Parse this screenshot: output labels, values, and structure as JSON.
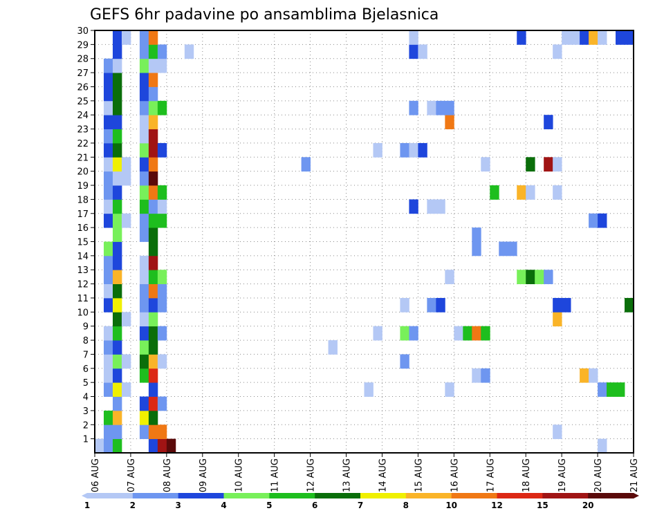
{
  "chart_data": {
    "type": "heatmap",
    "title": "GEFS 6hr padavine po ansamblima Bjelasnica",
    "xlabel": "",
    "ylabel": "",
    "x_ticks": [
      "06 AUG",
      "07 AUG",
      "08 AUG",
      "09 AUG",
      "10 AUG",
      "11 AUG",
      "12 AUG",
      "13 AUG",
      "14 AUG",
      "15 AUG",
      "16 AUG",
      "17 AUG",
      "18 AUG",
      "19 AUG",
      "20 AUG",
      "21 AUG"
    ],
    "y_ticks": [
      "1",
      "2",
      "3",
      "4",
      "5",
      "6",
      "7",
      "8",
      "9",
      "10",
      "11",
      "12",
      "13",
      "14",
      "15",
      "16",
      "17",
      "18",
      "19",
      "20",
      "21",
      "22",
      "23",
      "24",
      "25",
      "26",
      "27",
      "28",
      "29",
      "30"
    ],
    "xlim": [
      0,
      60
    ],
    "ylim": [
      0,
      30
    ],
    "steps_per_day": 4,
    "grid": true,
    "legend": {
      "placement": "bottom",
      "labels": [
        "1",
        "2",
        "3",
        "4",
        "5",
        "6",
        "7",
        "8",
        "10",
        "12",
        "15",
        "20"
      ],
      "colors": [
        "#b4c8f5",
        "#6e96f0",
        "#1e46dc",
        "#78f05a",
        "#1ebe1e",
        "#0a6e0a",
        "#f0f000",
        "#fab428",
        "#f07814",
        "#dc2814",
        "#a01414",
        "#5a0a0a"
      ]
    },
    "cells": [
      [
        0,
        0,
        1
      ],
      [
        1,
        0,
        2
      ],
      [
        2,
        0,
        5
      ],
      [
        6,
        0,
        3
      ],
      [
        7,
        0,
        11
      ],
      [
        8,
        0,
        12
      ],
      [
        56,
        0,
        1
      ],
      [
        1,
        1,
        2
      ],
      [
        2,
        1,
        2
      ],
      [
        5,
        1,
        2
      ],
      [
        6,
        1,
        9
      ],
      [
        7,
        1,
        9
      ],
      [
        51,
        1,
        1
      ],
      [
        1,
        2,
        5
      ],
      [
        2,
        2,
        8
      ],
      [
        5,
        2,
        7
      ],
      [
        6,
        2,
        6
      ],
      [
        2,
        3,
        2
      ],
      [
        5,
        3,
        3
      ],
      [
        6,
        3,
        10
      ],
      [
        7,
        3,
        2
      ],
      [
        1,
        4,
        2
      ],
      [
        2,
        4,
        7
      ],
      [
        3,
        4,
        1
      ],
      [
        6,
        4,
        3
      ],
      [
        30,
        4,
        1
      ],
      [
        39,
        4,
        1
      ],
      [
        56,
        4,
        2
      ],
      [
        57,
        4,
        5
      ],
      [
        58,
        4,
        5
      ],
      [
        1,
        5,
        1
      ],
      [
        2,
        5,
        3
      ],
      [
        5,
        5,
        5
      ],
      [
        6,
        5,
        10
      ],
      [
        42,
        5,
        1
      ],
      [
        43,
        5,
        2
      ],
      [
        54,
        5,
        8
      ],
      [
        55,
        5,
        1
      ],
      [
        1,
        6,
        1
      ],
      [
        2,
        6,
        4
      ],
      [
        3,
        6,
        1
      ],
      [
        5,
        6,
        6
      ],
      [
        6,
        6,
        8
      ],
      [
        7,
        6,
        1
      ],
      [
        34,
        6,
        2
      ],
      [
        1,
        7,
        2
      ],
      [
        2,
        7,
        3
      ],
      [
        5,
        7,
        4
      ],
      [
        6,
        7,
        6
      ],
      [
        26,
        7,
        1
      ],
      [
        1,
        8,
        1
      ],
      [
        2,
        8,
        5
      ],
      [
        5,
        8,
        3
      ],
      [
        6,
        8,
        6
      ],
      [
        7,
        8,
        2
      ],
      [
        31,
        8,
        1
      ],
      [
        34,
        8,
        4
      ],
      [
        35,
        8,
        2
      ],
      [
        40,
        8,
        1
      ],
      [
        41,
        8,
        5
      ],
      [
        42,
        8,
        9
      ],
      [
        43,
        8,
        5
      ],
      [
        2,
        9,
        6
      ],
      [
        3,
        9,
        1
      ],
      [
        5,
        9,
        1
      ],
      [
        6,
        9,
        4
      ],
      [
        51,
        9,
        8
      ],
      [
        1,
        10,
        3
      ],
      [
        2,
        10,
        7
      ],
      [
        5,
        10,
        2
      ],
      [
        6,
        10,
        3
      ],
      [
        7,
        10,
        2
      ],
      [
        34,
        10,
        1
      ],
      [
        37,
        10,
        2
      ],
      [
        38,
        10,
        3
      ],
      [
        51,
        10,
        3
      ],
      [
        52,
        10,
        3
      ],
      [
        59,
        10,
        6
      ],
      [
        1,
        11,
        1
      ],
      [
        2,
        11,
        6
      ],
      [
        5,
        11,
        2
      ],
      [
        6,
        11,
        9
      ],
      [
        7,
        11,
        2
      ],
      [
        1,
        12,
        2
      ],
      [
        2,
        12,
        8
      ],
      [
        5,
        12,
        1
      ],
      [
        6,
        12,
        5
      ],
      [
        7,
        12,
        4
      ],
      [
        39,
        12,
        1
      ],
      [
        47,
        12,
        4
      ],
      [
        48,
        12,
        6
      ],
      [
        49,
        12,
        4
      ],
      [
        50,
        12,
        2
      ],
      [
        1,
        13,
        2
      ],
      [
        2,
        13,
        3
      ],
      [
        5,
        13,
        1
      ],
      [
        6,
        13,
        11
      ],
      [
        1,
        14,
        4
      ],
      [
        2,
        14,
        3
      ],
      [
        6,
        14,
        6
      ],
      [
        42,
        14,
        2
      ],
      [
        45,
        14,
        2
      ],
      [
        46,
        14,
        2
      ],
      [
        2,
        15,
        4
      ],
      [
        5,
        15,
        2
      ],
      [
        6,
        15,
        6
      ],
      [
        42,
        15,
        2
      ],
      [
        1,
        16,
        3
      ],
      [
        2,
        16,
        4
      ],
      [
        3,
        16,
        1
      ],
      [
        5,
        16,
        2
      ],
      [
        6,
        16,
        5
      ],
      [
        7,
        16,
        5
      ],
      [
        55,
        16,
        2
      ],
      [
        56,
        16,
        3
      ],
      [
        1,
        17,
        1
      ],
      [
        2,
        17,
        5
      ],
      [
        5,
        17,
        5
      ],
      [
        6,
        17,
        2
      ],
      [
        7,
        17,
        1
      ],
      [
        35,
        17,
        3
      ],
      [
        37,
        17,
        1
      ],
      [
        38,
        17,
        1
      ],
      [
        1,
        18,
        2
      ],
      [
        2,
        18,
        3
      ],
      [
        5,
        18,
        4
      ],
      [
        6,
        18,
        9
      ],
      [
        7,
        18,
        5
      ],
      [
        44,
        18,
        5
      ],
      [
        47,
        18,
        8
      ],
      [
        48,
        18,
        1
      ],
      [
        51,
        18,
        1
      ],
      [
        1,
        19,
        2
      ],
      [
        2,
        19,
        1
      ],
      [
        3,
        19,
        1
      ],
      [
        5,
        19,
        2
      ],
      [
        6,
        19,
        12
      ],
      [
        1,
        20,
        1
      ],
      [
        2,
        20,
        7
      ],
      [
        3,
        20,
        1
      ],
      [
        5,
        20,
        3
      ],
      [
        6,
        20,
        9
      ],
      [
        23,
        20,
        2
      ],
      [
        43,
        20,
        1
      ],
      [
        48,
        20,
        6
      ],
      [
        50,
        20,
        11
      ],
      [
        51,
        20,
        1
      ],
      [
        1,
        21,
        3
      ],
      [
        2,
        21,
        6
      ],
      [
        5,
        21,
        4
      ],
      [
        6,
        21,
        11
      ],
      [
        7,
        21,
        3
      ],
      [
        31,
        21,
        1
      ],
      [
        34,
        21,
        2
      ],
      [
        35,
        21,
        1
      ],
      [
        36,
        21,
        3
      ],
      [
        1,
        22,
        2
      ],
      [
        2,
        22,
        5
      ],
      [
        5,
        22,
        1
      ],
      [
        6,
        22,
        11
      ],
      [
        1,
        23,
        3
      ],
      [
        2,
        23,
        3
      ],
      [
        5,
        23,
        1
      ],
      [
        6,
        23,
        8
      ],
      [
        39,
        23,
        9
      ],
      [
        50,
        23,
        3
      ],
      [
        1,
        24,
        1
      ],
      [
        2,
        24,
        6
      ],
      [
        5,
        24,
        2
      ],
      [
        6,
        24,
        4
      ],
      [
        7,
        24,
        5
      ],
      [
        35,
        24,
        2
      ],
      [
        37,
        24,
        1
      ],
      [
        38,
        24,
        2
      ],
      [
        39,
        24,
        2
      ],
      [
        1,
        25,
        3
      ],
      [
        2,
        25,
        6
      ],
      [
        5,
        25,
        3
      ],
      [
        6,
        25,
        2
      ],
      [
        1,
        26,
        3
      ],
      [
        2,
        26,
        6
      ],
      [
        5,
        26,
        3
      ],
      [
        6,
        26,
        9
      ],
      [
        1,
        27,
        2
      ],
      [
        2,
        27,
        1
      ],
      [
        5,
        27,
        4
      ],
      [
        6,
        27,
        1
      ],
      [
        7,
        27,
        1
      ],
      [
        2,
        28,
        3
      ],
      [
        5,
        28,
        2
      ],
      [
        6,
        28,
        5
      ],
      [
        7,
        28,
        2
      ],
      [
        10,
        28,
        1
      ],
      [
        35,
        28,
        3
      ],
      [
        36,
        28,
        1
      ],
      [
        51,
        28,
        1
      ],
      [
        2,
        29,
        3
      ],
      [
        3,
        29,
        1
      ],
      [
        5,
        29,
        2
      ],
      [
        6,
        29,
        9
      ],
      [
        35,
        29,
        1
      ],
      [
        47,
        29,
        3
      ],
      [
        52,
        29,
        1
      ],
      [
        53,
        29,
        1
      ],
      [
        54,
        29,
        3
      ],
      [
        55,
        29,
        8
      ],
      [
        56,
        29,
        1
      ],
      [
        58,
        29,
        3
      ],
      [
        59,
        29,
        3
      ]
    ]
  }
}
